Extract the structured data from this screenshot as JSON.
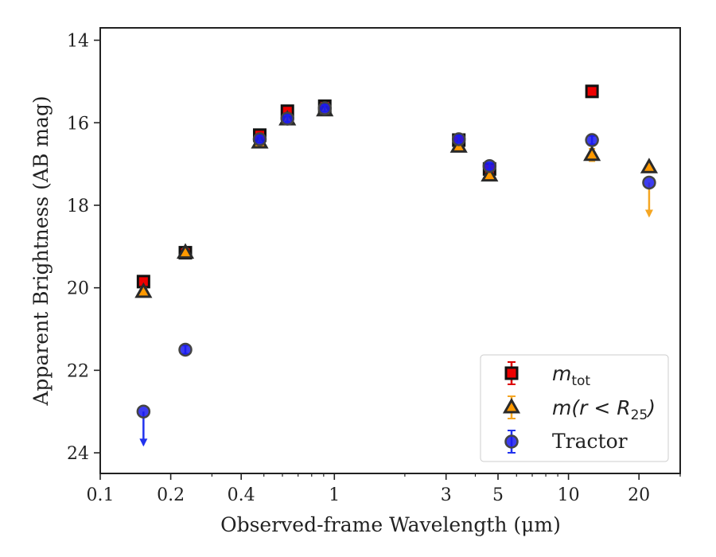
{
  "colors": {
    "mtot_face": "#ee0000",
    "mtot_edge": "#111111",
    "mtot_err": "#dd0000",
    "mr25_face": "#ff9900",
    "mr25_edge": "#2a2a2a",
    "mr25_err": "#f5a623",
    "tractor_face": "#1a1aee",
    "tractor_edge": "#444444",
    "tractor_err": "#2233ee",
    "axes": "#222222",
    "legend_border": "#cccccc"
  },
  "legend": {
    "items": [
      {
        "id": "mtot",
        "label_main": "m",
        "label_sub": "tot",
        "label_rest": ""
      },
      {
        "id": "mr25",
        "label_main": "m(r < R",
        "label_sub": "25",
        "label_rest": ")"
      },
      {
        "id": "tractor",
        "label_main": "Tractor",
        "label_sub": "",
        "label_rest": ""
      }
    ]
  },
  "chart_data": {
    "type": "scatter",
    "xlabel": "Observed-frame Wavelength (μm)",
    "ylabel": "Apparent Brightness (AB mag)",
    "xscale": "log",
    "xlim": [
      0.1,
      30
    ],
    "ylim": [
      24.5,
      13.7
    ],
    "y_inverted": true,
    "xticks": [
      {
        "value": 0.1,
        "label": "0.1"
      },
      {
        "value": 0.2,
        "label": "0.2"
      },
      {
        "value": 0.4,
        "label": "0.4"
      },
      {
        "value": 1,
        "label": "1"
      },
      {
        "value": 3,
        "label": "3"
      },
      {
        "value": 5,
        "label": "5"
      },
      {
        "value": 10,
        "label": "10"
      },
      {
        "value": 20,
        "label": "20"
      }
    ],
    "xminor": [
      0.3,
      0.5,
      0.6,
      0.7,
      0.8,
      0.9,
      2,
      4,
      6,
      7,
      8,
      9,
      30
    ],
    "yticks": [
      {
        "value": 14,
        "label": "14"
      },
      {
        "value": 16,
        "label": "16"
      },
      {
        "value": 18,
        "label": "18"
      },
      {
        "value": 20,
        "label": "20"
      },
      {
        "value": 22,
        "label": "22"
      },
      {
        "value": 24,
        "label": "24"
      }
    ],
    "legend_position": "lower-right",
    "grid": false,
    "series": [
      {
        "name": "m_tot",
        "marker": "square",
        "points": [
          {
            "x": 0.153,
            "y": 19.85,
            "err": 0.1
          },
          {
            "x": 0.231,
            "y": 19.15,
            "err": 0.1
          },
          {
            "x": 0.48,
            "y": 16.3,
            "err": 0.08
          },
          {
            "x": 0.63,
            "y": 15.72,
            "err": 0.08
          },
          {
            "x": 0.91,
            "y": 15.6,
            "err": 0.08
          },
          {
            "x": 3.4,
            "y": 16.42,
            "err": 0.08
          },
          {
            "x": 4.6,
            "y": 17.12,
            "err": 0.08
          },
          {
            "x": 12.6,
            "y": 15.24,
            "err": 0.05
          }
        ]
      },
      {
        "name": "m(r < R25)",
        "marker": "triangle",
        "points": [
          {
            "x": 0.153,
            "y": 20.1,
            "err": 0.1
          },
          {
            "x": 0.231,
            "y": 19.15,
            "err": 0.1
          },
          {
            "x": 0.48,
            "y": 16.48,
            "err": 0.08
          },
          {
            "x": 0.63,
            "y": 15.92,
            "err": 0.08
          },
          {
            "x": 0.91,
            "y": 15.7,
            "err": 0.08
          },
          {
            "x": 3.4,
            "y": 16.58,
            "err": 0.08
          },
          {
            "x": 4.6,
            "y": 17.28,
            "err": 0.08
          },
          {
            "x": 12.6,
            "y": 16.78,
            "err": 0.15
          },
          {
            "x": 22.1,
            "y": 17.08,
            "err": 0.0
          }
        ]
      },
      {
        "name": "Tractor",
        "marker": "circle",
        "points": [
          {
            "x": 0.153,
            "y": 23.0,
            "err": 0,
            "upper_limit": true
          },
          {
            "x": 0.231,
            "y": 21.5,
            "err": 0.1
          },
          {
            "x": 0.48,
            "y": 16.4,
            "err": 0.08
          },
          {
            "x": 0.63,
            "y": 15.9,
            "err": 0.08
          },
          {
            "x": 0.91,
            "y": 15.65,
            "err": 0.08
          },
          {
            "x": 3.4,
            "y": 16.4,
            "err": 0.08
          },
          {
            "x": 4.6,
            "y": 17.05,
            "err": 0.08
          },
          {
            "x": 12.6,
            "y": 16.42,
            "err": 0.1
          },
          {
            "x": 22.1,
            "y": 17.45,
            "err": 0,
            "upper_limit": true
          }
        ]
      }
    ]
  }
}
